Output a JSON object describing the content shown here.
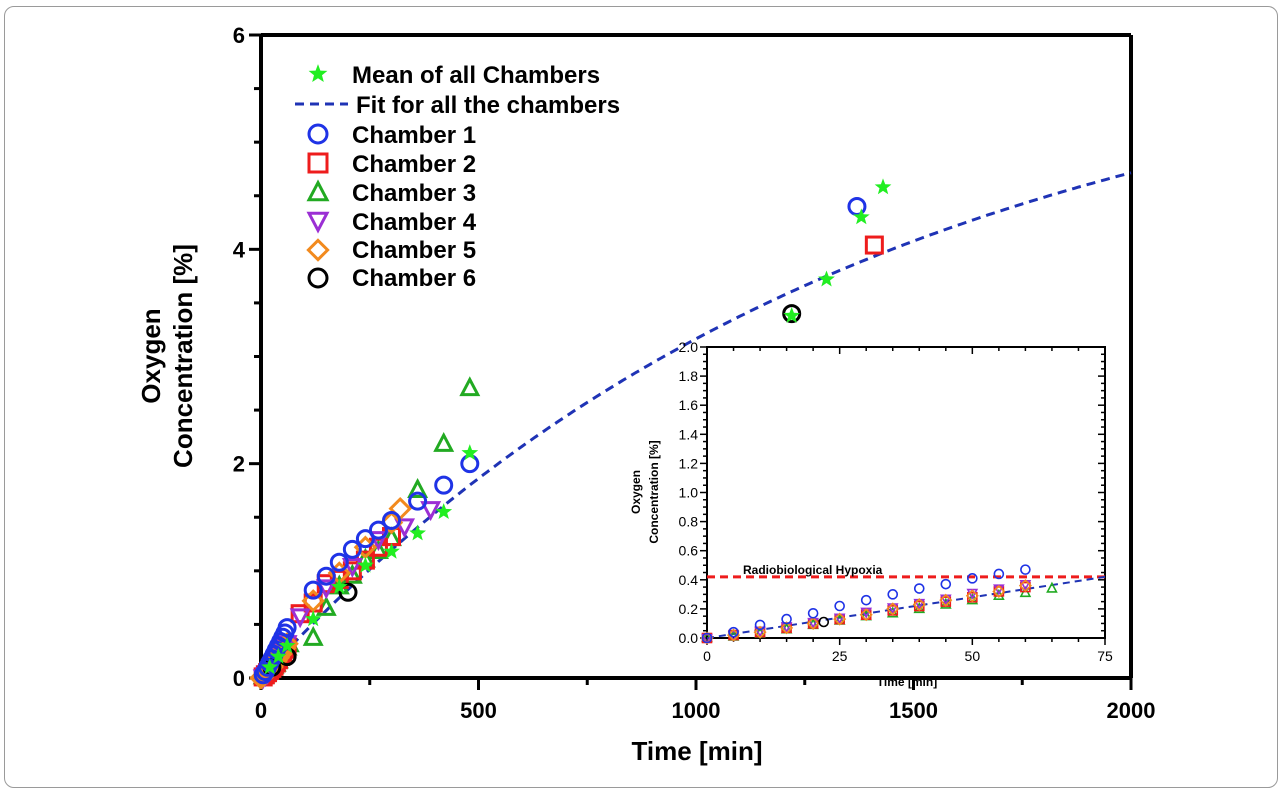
{
  "colors": {
    "mean": "#22ee22",
    "fit": "#1f33b5",
    "ch1": "#1f33e6",
    "ch2": "#ee1c1c",
    "ch3": "#22aa22",
    "ch4": "#9b2fd4",
    "ch5": "#f28a1e",
    "ch6": "#000000",
    "hypoxia": "#ee1c1c"
  },
  "chart_data": [
    {
      "type": "scatter",
      "title": "",
      "xlabel": "Time [min]",
      "ylabel_line1": "Oxygen",
      "ylabel_line2": "Concentration [%]",
      "xlim": [
        0,
        2000
      ],
      "ylim": [
        0,
        6
      ],
      "xticks": [
        "0",
        "500",
        "1000",
        "1500",
        "2000"
      ],
      "yticks": [
        "0",
        "2",
        "4",
        "6"
      ],
      "legend_position": "top-left",
      "legend": {
        "mean": "Mean of all Chambers",
        "fit": "Fit for all the chambers",
        "ch1": "Chamber 1",
        "ch2": "Chamber 2",
        "ch3": "Chamber 3",
        "ch4": "Chamber 4",
        "ch5": "Chamber 5",
        "ch6": "Chamber 6"
      },
      "fit": {
        "model": "y = A*(1-exp(-x/tau))",
        "A": 6.2,
        "tau": 1400
      },
      "series": [
        {
          "key": "mean",
          "marker": "star",
          "x": [
            20,
            40,
            60,
            120,
            180,
            240,
            300,
            360,
            420,
            480,
            1220,
            1300,
            1380,
            1430
          ],
          "y": [
            0.1,
            0.2,
            0.3,
            0.55,
            0.85,
            1.05,
            1.18,
            1.35,
            1.55,
            2.1,
            3.38,
            3.72,
            4.3,
            4.58
          ]
        },
        {
          "key": "ch1",
          "marker": "circle",
          "x": [
            5,
            10,
            15,
            20,
            25,
            30,
            35,
            40,
            45,
            50,
            55,
            60,
            120,
            150,
            180,
            210,
            240,
            270,
            300,
            360,
            420,
            480,
            1370
          ],
          "y": [
            0.03,
            0.06,
            0.1,
            0.14,
            0.18,
            0.22,
            0.26,
            0.3,
            0.34,
            0.38,
            0.42,
            0.47,
            0.82,
            0.95,
            1.08,
            1.2,
            1.3,
            1.38,
            1.47,
            1.65,
            1.8,
            2.0,
            4.4
          ]
        },
        {
          "key": "ch2",
          "marker": "square",
          "x": [
            5,
            10,
            15,
            20,
            25,
            30,
            35,
            40,
            45,
            50,
            55,
            60,
            90,
            120,
            150,
            180,
            210,
            240,
            270,
            300,
            1410
          ],
          "y": [
            0.01,
            0.03,
            0.05,
            0.07,
            0.09,
            0.11,
            0.14,
            0.17,
            0.2,
            0.24,
            0.27,
            0.3,
            0.6,
            0.7,
            0.88,
            0.92,
            1.0,
            1.1,
            1.22,
            1.32,
            4.04
          ]
        },
        {
          "key": "ch3",
          "marker": "triangle-up",
          "x": [
            5,
            10,
            15,
            20,
            25,
            30,
            35,
            40,
            45,
            50,
            55,
            60,
            65,
            120,
            150,
            180,
            210,
            240,
            270,
            300,
            360,
            420,
            480
          ],
          "y": [
            0.01,
            0.03,
            0.05,
            0.07,
            0.09,
            0.11,
            0.13,
            0.16,
            0.19,
            0.22,
            0.25,
            0.28,
            0.31,
            0.37,
            0.65,
            0.85,
            0.95,
            1.1,
            1.18,
            1.3,
            1.75,
            2.18,
            2.7
          ]
        },
        {
          "key": "ch4",
          "marker": "triangle-down",
          "x": [
            5,
            10,
            15,
            20,
            25,
            30,
            35,
            40,
            45,
            50,
            55,
            60,
            90,
            150,
            210,
            270,
            330,
            390
          ],
          "y": [
            0.01,
            0.03,
            0.05,
            0.08,
            0.1,
            0.12,
            0.15,
            0.18,
            0.21,
            0.25,
            0.29,
            0.33,
            0.58,
            0.85,
            1.05,
            1.3,
            1.42,
            1.58
          ]
        },
        {
          "key": "ch5",
          "marker": "diamond",
          "x": [
            0,
            5,
            10,
            15,
            20,
            25,
            30,
            35,
            40,
            45,
            50,
            55,
            60,
            120,
            180,
            240,
            300,
            320
          ],
          "y": [
            0,
            0.02,
            0.04,
            0.06,
            0.08,
            0.1,
            0.13,
            0.16,
            0.19,
            0.22,
            0.25,
            0.28,
            0.32,
            0.72,
            0.98,
            1.22,
            1.45,
            1.58
          ]
        },
        {
          "key": "ch6",
          "marker": "circle",
          "x": [
            25,
            60,
            200,
            1220
          ],
          "y": [
            0.1,
            0.2,
            0.8,
            3.4
          ]
        }
      ]
    },
    {
      "type": "scatter",
      "title": "",
      "xlabel": "Time [min]",
      "ylabel_line1": "Oxygen",
      "ylabel_line2": "Concentration [%]",
      "xlim": [
        0,
        75
      ],
      "ylim": [
        0,
        2.0
      ],
      "xticks": [
        "0",
        "25",
        "50",
        "75"
      ],
      "yticks": [
        "0.0",
        "0.2",
        "0.4",
        "0.6",
        "0.8",
        "1.0",
        "1.2",
        "1.4",
        "1.6",
        "1.8",
        "2.0"
      ],
      "annotation": "Radiobiological Hypoxia",
      "hypoxia_level": 0.42,
      "fit": {
        "model": "linear",
        "slope": 0.0056
      },
      "series": [
        {
          "key": "ch1",
          "marker": "circle",
          "x": [
            0,
            5,
            10,
            15,
            20,
            25,
            30,
            35,
            40,
            45,
            50,
            55,
            60
          ],
          "y": [
            0,
            0.04,
            0.09,
            0.13,
            0.17,
            0.22,
            0.26,
            0.3,
            0.34,
            0.37,
            0.41,
            0.44,
            0.47
          ]
        },
        {
          "key": "ch2",
          "marker": "square",
          "x": [
            0,
            5,
            10,
            15,
            20,
            25,
            30,
            35,
            40,
            45,
            50,
            55,
            60
          ],
          "y": [
            0,
            0.02,
            0.04,
            0.07,
            0.1,
            0.13,
            0.16,
            0.19,
            0.22,
            0.25,
            0.28,
            0.32,
            0.35
          ]
        },
        {
          "key": "ch3",
          "marker": "triangle-up",
          "x": [
            0,
            5,
            10,
            15,
            20,
            25,
            30,
            35,
            40,
            45,
            50,
            55,
            60,
            65
          ],
          "y": [
            0,
            0.01,
            0.03,
            0.06,
            0.09,
            0.12,
            0.15,
            0.17,
            0.2,
            0.23,
            0.26,
            0.29,
            0.31,
            0.34
          ]
        },
        {
          "key": "ch4",
          "marker": "triangle-down",
          "x": [
            0,
            5,
            10,
            15,
            20,
            25,
            30,
            35,
            40,
            45,
            50,
            55,
            60
          ],
          "y": [
            0,
            0.02,
            0.05,
            0.08,
            0.11,
            0.14,
            0.18,
            0.21,
            0.24,
            0.27,
            0.31,
            0.34,
            0.37
          ]
        },
        {
          "key": "ch5",
          "marker": "diamond",
          "x": [
            0,
            5,
            10,
            15,
            20,
            25,
            30,
            35,
            40,
            45,
            50,
            55,
            60
          ],
          "y": [
            0,
            0.02,
            0.04,
            0.07,
            0.1,
            0.13,
            0.16,
            0.2,
            0.23,
            0.26,
            0.29,
            0.32,
            0.36
          ]
        },
        {
          "key": "ch6",
          "marker": "circle",
          "x": [
            22
          ],
          "y": [
            0.11
          ]
        }
      ]
    }
  ]
}
